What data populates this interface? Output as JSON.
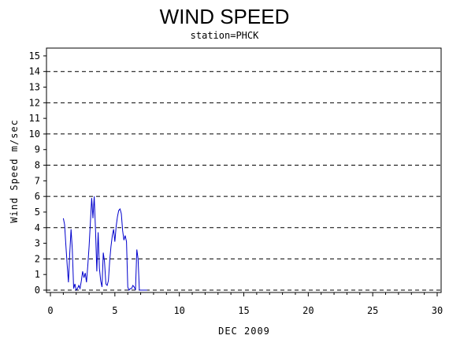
{
  "chart_data": {
    "type": "line",
    "title": "WIND SPEED",
    "subtitle": "station=PHCK",
    "xlabel": "DEC 2009",
    "ylabel": "Wind Speed m/sec",
    "xlim": [
      0,
      30
    ],
    "ylim": [
      0,
      15.5
    ],
    "x_ticks": [
      0,
      5,
      10,
      15,
      20,
      25,
      30
    ],
    "y_ticks": [
      0,
      1,
      2,
      3,
      4,
      5,
      6,
      7,
      8,
      9,
      10,
      11,
      12,
      13,
      14,
      15
    ],
    "grid_y_dashed": [
      2,
      4,
      6,
      8,
      10,
      12,
      14
    ],
    "colors": {
      "series": "#0000cc",
      "grid": "#000000"
    },
    "series": [
      {
        "x": [
          1.0,
          1.1,
          1.2,
          1.3,
          1.4,
          1.5,
          1.6,
          1.7,
          1.8,
          1.9,
          2.0,
          2.1,
          2.2,
          2.3,
          2.4,
          2.5,
          2.6,
          2.7,
          2.8,
          2.9,
          3.0,
          3.1,
          3.2,
          3.3,
          3.4,
          3.5,
          3.6,
          3.7,
          3.8,
          3.9,
          4.0,
          4.1,
          4.2,
          4.3,
          4.4,
          4.5,
          4.6,
          4.7,
          4.8,
          4.9,
          5.0,
          5.1,
          5.2,
          5.3,
          5.4,
          5.5,
          5.6,
          5.7,
          5.8,
          5.9,
          6.0,
          6.1,
          6.2,
          6.3,
          6.4,
          6.5,
          6.6,
          6.7,
          6.8,
          6.9,
          7.0,
          7.1,
          7.2,
          7.3,
          7.4,
          7.5
        ],
        "y": [
          4.6,
          4.2,
          2.9,
          1.6,
          0.5,
          2.3,
          3.9,
          2.6,
          0.1,
          0.4,
          0.0,
          0.1,
          0.3,
          0.1,
          0.6,
          1.2,
          0.8,
          1.1,
          0.5,
          1.6,
          2.8,
          4.3,
          5.9,
          4.6,
          6.0,
          3.8,
          1.2,
          3.7,
          1.4,
          0.6,
          0.2,
          2.4,
          1.8,
          0.4,
          0.3,
          0.6,
          1.9,
          2.8,
          3.5,
          3.9,
          3.1,
          4.1,
          4.7,
          5.1,
          5.2,
          4.9,
          3.8,
          3.2,
          3.5,
          3.1,
          0.2,
          0.0,
          0.1,
          0.1,
          0.3,
          0.2,
          0.0,
          2.6,
          2.0,
          0.0,
          0.0,
          0.0,
          0.0,
          0.0,
          0.0,
          0.0
        ]
      }
    ]
  }
}
